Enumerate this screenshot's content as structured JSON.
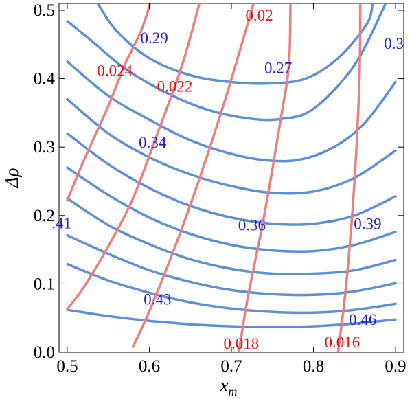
{
  "chart_data": {
    "type": "contour",
    "xlabel": "x",
    "xlabel_sub": "m",
    "ylabel": "Δρ",
    "xlim": [
      0.49,
      0.91
    ],
    "ylim": [
      0.0,
      0.51
    ],
    "xticks": [
      "0.5",
      "0.6",
      "0.7",
      "0.8",
      "0.9"
    ],
    "xtick_values": [
      0.5,
      0.6,
      0.7,
      0.8,
      0.9
    ],
    "yticks": [
      "0.0",
      "0.1",
      "0.2",
      "0.3",
      "0.4",
      "0.5"
    ],
    "ytick_values": [
      0.0,
      0.1,
      0.2,
      0.3,
      0.4,
      0.5
    ],
    "colors": {
      "blue": "#5b8fdc",
      "red": "#e97f7f",
      "blue_text": "#1f1fd0",
      "red_text": "#e01010"
    },
    "blue_contours": [
      {
        "points": [
          [
            0.537,
            0.51
          ],
          [
            0.56,
            0.47
          ],
          [
            0.6,
            0.43
          ],
          [
            0.65,
            0.405
          ],
          [
            0.7,
            0.395
          ],
          [
            0.745,
            0.393
          ],
          [
            0.79,
            0.4
          ],
          [
            0.83,
            0.43
          ],
          [
            0.865,
            0.48
          ],
          [
            0.872,
            0.51
          ]
        ]
      },
      {
        "points": [
          [
            0.5,
            0.484
          ],
          [
            0.53,
            0.455
          ],
          [
            0.57,
            0.415
          ],
          [
            0.62,
            0.38
          ],
          [
            0.67,
            0.355
          ],
          [
            0.72,
            0.342
          ],
          [
            0.76,
            0.341
          ],
          [
            0.8,
            0.356
          ],
          [
            0.85,
            0.42
          ],
          [
            0.888,
            0.51
          ]
        ]
      },
      {
        "points": [
          [
            0.5,
            0.425
          ],
          [
            0.55,
            0.375
          ],
          [
            0.6,
            0.34
          ],
          [
            0.65,
            0.31
          ],
          [
            0.7,
            0.29
          ],
          [
            0.74,
            0.281
          ],
          [
            0.78,
            0.281
          ],
          [
            0.82,
            0.297
          ],
          [
            0.86,
            0.332
          ],
          [
            0.9,
            0.395
          ]
        ]
      },
      {
        "points": [
          [
            0.5,
            0.37
          ],
          [
            0.55,
            0.32
          ],
          [
            0.6,
            0.285
          ],
          [
            0.65,
            0.26
          ],
          [
            0.7,
            0.243
          ],
          [
            0.75,
            0.233
          ],
          [
            0.8,
            0.235
          ],
          [
            0.85,
            0.255
          ],
          [
            0.9,
            0.295
          ]
        ]
      },
      {
        "points": [
          [
            0.5,
            0.32
          ],
          [
            0.55,
            0.275
          ],
          [
            0.6,
            0.24
          ],
          [
            0.65,
            0.214
          ],
          [
            0.7,
            0.197
          ],
          [
            0.75,
            0.188
          ],
          [
            0.8,
            0.188
          ],
          [
            0.85,
            0.2
          ],
          [
            0.9,
            0.228
          ]
        ]
      },
      {
        "points": [
          [
            0.5,
            0.27
          ],
          [
            0.55,
            0.23
          ],
          [
            0.6,
            0.197
          ],
          [
            0.65,
            0.173
          ],
          [
            0.7,
            0.157
          ],
          [
            0.75,
            0.149
          ],
          [
            0.8,
            0.148
          ],
          [
            0.85,
            0.157
          ],
          [
            0.9,
            0.176
          ]
        ]
      },
      {
        "points": [
          [
            0.5,
            0.225
          ],
          [
            0.55,
            0.186
          ],
          [
            0.6,
            0.158
          ],
          [
            0.65,
            0.136
          ],
          [
            0.7,
            0.122
          ],
          [
            0.75,
            0.115
          ],
          [
            0.8,
            0.115
          ],
          [
            0.85,
            0.12
          ],
          [
            0.9,
            0.135
          ]
        ]
      },
      {
        "points": [
          [
            0.5,
            0.171
          ],
          [
            0.55,
            0.144
          ],
          [
            0.6,
            0.12
          ],
          [
            0.65,
            0.103
          ],
          [
            0.7,
            0.091
          ],
          [
            0.75,
            0.085
          ],
          [
            0.8,
            0.084
          ],
          [
            0.85,
            0.089
          ],
          [
            0.9,
            0.101
          ]
        ]
      },
      {
        "points": [
          [
            0.5,
            0.129
          ],
          [
            0.55,
            0.105
          ],
          [
            0.6,
            0.087
          ],
          [
            0.65,
            0.073
          ],
          [
            0.7,
            0.064
          ],
          [
            0.75,
            0.059
          ],
          [
            0.8,
            0.058
          ],
          [
            0.85,
            0.062
          ],
          [
            0.9,
            0.071
          ]
        ]
      },
      {
        "points": [
          [
            0.5,
            0.062
          ],
          [
            0.55,
            0.053
          ],
          [
            0.6,
            0.046
          ],
          [
            0.65,
            0.041
          ],
          [
            0.7,
            0.038
          ],
          [
            0.75,
            0.037
          ],
          [
            0.8,
            0.038
          ],
          [
            0.85,
            0.042
          ],
          [
            0.9,
            0.048
          ]
        ]
      }
    ],
    "red_contours": [
      {
        "points": [
          [
            0.5,
            0.222
          ],
          [
            0.52,
            0.28
          ],
          [
            0.55,
            0.36
          ],
          [
            0.57,
            0.42
          ],
          [
            0.59,
            0.47
          ],
          [
            0.601,
            0.51
          ]
        ]
      },
      {
        "points": [
          [
            0.5,
            0.063
          ],
          [
            0.52,
            0.095
          ],
          [
            0.55,
            0.155
          ],
          [
            0.58,
            0.225
          ],
          [
            0.61,
            0.32
          ],
          [
            0.64,
            0.42
          ],
          [
            0.661,
            0.51
          ]
        ]
      },
      {
        "points": [
          [
            0.58,
            0.008
          ],
          [
            0.6,
            0.06
          ],
          [
            0.63,
            0.15
          ],
          [
            0.66,
            0.25
          ],
          [
            0.69,
            0.36
          ],
          [
            0.71,
            0.44
          ],
          [
            0.727,
            0.51
          ]
        ]
      },
      {
        "points": [
          [
            0.709,
            0.0
          ],
          [
            0.72,
            0.08
          ],
          [
            0.74,
            0.2
          ],
          [
            0.76,
            0.34
          ],
          [
            0.77,
            0.42
          ],
          [
            0.772,
            0.51
          ]
        ]
      },
      {
        "points": [
          [
            0.83,
            0.0
          ],
          [
            0.84,
            0.1
          ],
          [
            0.85,
            0.25
          ],
          [
            0.856,
            0.4
          ],
          [
            0.857,
            0.51
          ]
        ]
      }
    ],
    "blue_labels": [
      {
        "text": "0.29",
        "x": 0.606,
        "y": 0.46
      },
      {
        "text": "0.27",
        "x": 0.757,
        "y": 0.416
      },
      {
        "text": "0.3",
        "x": 0.898,
        "y": 0.452
      },
      {
        "text": "0.34",
        "x": 0.604,
        "y": 0.307
      },
      {
        "text": ".41",
        "x": 0.493,
        "y": 0.189
      },
      {
        "text": "0.36",
        "x": 0.725,
        "y": 0.186
      },
      {
        "text": "0.39",
        "x": 0.866,
        "y": 0.188
      },
      {
        "text": "0.43",
        "x": 0.61,
        "y": 0.078
      },
      {
        "text": "0.46",
        "x": 0.86,
        "y": 0.048
      }
    ],
    "red_labels": [
      {
        "text": "0.02",
        "x": 0.734,
        "y": 0.493
      },
      {
        "text": "0.024",
        "x": 0.558,
        "y": 0.412
      },
      {
        "text": "0.022",
        "x": 0.631,
        "y": 0.389
      },
      {
        "text": "0.018",
        "x": 0.712,
        "y": 0.013
      },
      {
        "text": "0.016",
        "x": 0.835,
        "y": 0.015
      }
    ]
  }
}
